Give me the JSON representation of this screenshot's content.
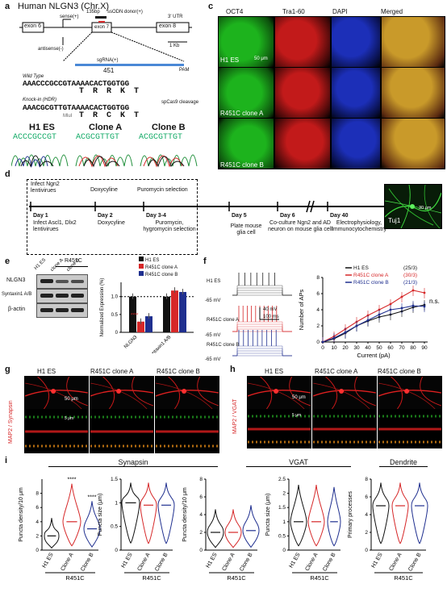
{
  "panels": {
    "a": "a",
    "b": "b",
    "c": "c",
    "d": "d",
    "e": "e",
    "f": "f",
    "g": "g",
    "h": "h",
    "i": "i"
  },
  "panel_a": {
    "title": "Human NLGN3 (Chr.X)",
    "exon6": "exon 6",
    "exon7": "exon 7",
    "exon8": "exon 8",
    "utr": "3' UTR",
    "scale": "1 Kb",
    "sense": "sense(+)",
    "antisense": "antisense(-)",
    "bp": "135bp",
    "ssODN": "ssODN donor(+)",
    "sgRNA": "sgRNA(+)",
    "pos": "451",
    "pam": "PAM",
    "wt_label": "Wild Type",
    "wt_seq": "AAACCCGCCGTAAAACACTGGTGG",
    "wt_aa": "T R R K T",
    "ki_label": "Knock-in (HDR)",
    "ki_seq": "AAACGCGTTGTAAAACACTGGTGG",
    "ki_aa": "T R C K T",
    "mlu": "MluI",
    "cleave": "spCas9 cleavage",
    "seq_titles": [
      "H1 ES",
      "Clone A",
      "Clone B"
    ],
    "seq_strings": [
      "ACCCGCCGT",
      "ACGCGTTGT",
      "ACGCGTTGT"
    ]
  },
  "panel_c": {
    "cols": [
      "OCT4",
      "Tra1-60",
      "DAPI",
      "Merged"
    ],
    "rows": [
      "H1 ES",
      "R451C clone A",
      "R451C clone B"
    ],
    "scale": "50 μm"
  },
  "panel_d": {
    "top_labels": [
      "Infect Ngn2 lentivirues",
      "Doxycyline",
      "Puromycin selection"
    ],
    "days": [
      "Day 1",
      "Day 2",
      "Day 3-4",
      "Day 5",
      "Day 6",
      "Day 40"
    ],
    "bottom_labels": [
      "Infect Ascl1, Dlx2 lentivirues",
      "Doxycyline",
      "Puromycin, hygromycin selection",
      "Plate mouse glia cell",
      "Co-culture Ngn2 and AD neuron on mouse glia cell",
      "Electrophysiology, Immunocytochemistry"
    ],
    "tuj": "Tuj1",
    "scale": "30 μm"
  },
  "panel_e": {
    "group": "R451C",
    "lanes": [
      "H1 ES",
      "clone A",
      "clone B"
    ],
    "bands": [
      "NLGN3",
      "Syntaxin1 A/B",
      "β-actin"
    ],
    "legend": [
      "H1 ES",
      "R451C clone A",
      "R451C clone B"
    ],
    "ylabel": "Normalized Expression (%)",
    "categories": [
      "NLGN3",
      "Syntaxin1 A/B"
    ],
    "colors": {
      "h1": "#111111",
      "a": "#d62728",
      "b": "#1f2f8f"
    }
  },
  "panel_f": {
    "trace_labels": [
      "H1 ES",
      "R451C clone A",
      "R451C clone B"
    ],
    "mv": "-65 mV",
    "scale_mv": "40 mV",
    "scale_ms": "100 ms",
    "ns": "n.s."
  },
  "chart_data": [
    {
      "type": "bar",
      "ylabel": "Normalized Expression (%)",
      "categories": [
        "NLGN3",
        "Syntaxin1 A/B"
      ],
      "ylim": [
        0,
        1.4
      ],
      "yticks": [
        "0",
        "0.5",
        "1.0"
      ],
      "series": [
        {
          "name": "H1 ES",
          "values": [
            1.0,
            1.0
          ]
        },
        {
          "name": "R451C clone A",
          "values": [
            0.3,
            1.17
          ]
        },
        {
          "name": "R451C clone B",
          "values": [
            0.45,
            1.13
          ]
        }
      ],
      "annotations": [
        "****",
        "****"
      ]
    },
    {
      "type": "line",
      "xlabel": "Current (pA)",
      "ylabel": "Number of APs",
      "x": [
        0,
        10,
        20,
        30,
        40,
        50,
        60,
        70,
        80,
        90
      ],
      "xlim": [
        0,
        90
      ],
      "ylim": [
        0,
        8
      ],
      "yticks": [
        "0",
        "2",
        "4",
        "6",
        "8"
      ],
      "series": [
        {
          "name": "H1 ES",
          "n": "(25/3)",
          "values": [
            0,
            0.4,
            1.1,
            2.0,
            2.6,
            3.1,
            3.4,
            3.8,
            4.3,
            4.6
          ]
        },
        {
          "name": "R451C clone A",
          "n": "(30/3)",
          "values": [
            0,
            0.7,
            1.6,
            2.5,
            3.3,
            4.0,
            4.7,
            5.6,
            6.4,
            6.1
          ]
        },
        {
          "name": "R451C clone B",
          "n": "(21/3)",
          "values": [
            0,
            0.5,
            1.2,
            2.0,
            2.7,
            3.4,
            4.0,
            4.2,
            4.5,
            4.4
          ]
        }
      ]
    }
  ],
  "panel_g": {
    "stain": "MAP2 / Synapsin",
    "cols": [
      "H1 ES",
      "R451C clone A",
      "R451C clone B"
    ],
    "scale": "50 μm",
    "scale2": "5 μm"
  },
  "panel_h": {
    "stain": "MAP2 / VGAT",
    "cols": [
      "H1 ES",
      "R451C clone A",
      "R451C clone B"
    ],
    "scale": "50 μm",
    "scale2": "5 μm"
  },
  "panel_i": {
    "groups": [
      "Synapsin",
      "VGAT",
      "Dendrite"
    ],
    "ylabels": [
      "Puncta density/10 μm",
      "Puncta size (μm)",
      "Puncta density/10 μm",
      "Puncta size (μm)",
      "Primary processes"
    ],
    "xcats": [
      "H1 ES",
      "Clone A",
      "Clone B"
    ],
    "group_label": "R451C",
    "stars": "****"
  }
}
